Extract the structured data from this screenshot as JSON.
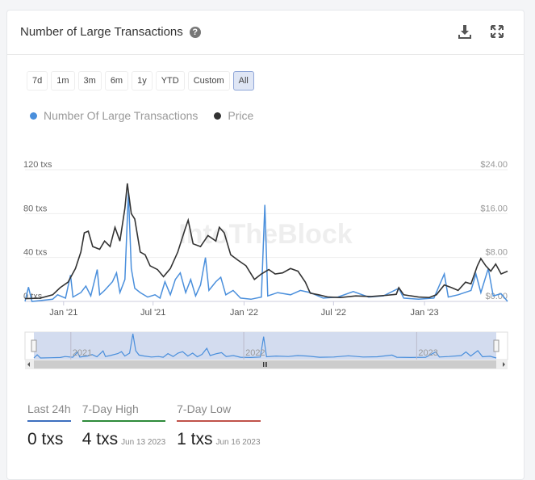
{
  "header": {
    "title": "Number of Large Transactions",
    "help_icon": "question-circle-icon",
    "download_icon": "download-icon",
    "expand_icon": "expand-icon"
  },
  "ranges": [
    "7d",
    "1m",
    "3m",
    "6m",
    "1y",
    "YTD",
    "Custom",
    "All"
  ],
  "selected_range": "All",
  "watermark": "IntoTheBlock",
  "chart_data": {
    "type": "line",
    "title": "",
    "legend": {
      "placement": "top-left",
      "entries": [
        {
          "name": "Number Of Large Transactions",
          "color": "#4a8fdc"
        },
        {
          "name": "Price",
          "color": "#333333"
        }
      ]
    },
    "y_left": {
      "ticks": [
        "0 txs",
        "40 txs",
        "80 txs",
        "120 txs"
      ],
      "range": [
        0,
        120
      ]
    },
    "y_right": {
      "ticks": [
        "$0.00",
        "$8.00",
        "$16.00",
        "$24.00"
      ],
      "range": [
        0,
        24
      ]
    },
    "x_ticks": [
      {
        "label": "Jan '21",
        "date": "2021-01-01"
      },
      {
        "label": "Jul '21",
        "date": "2021-07-01"
      },
      {
        "label": "Jan '22",
        "date": "2022-01-01"
      },
      {
        "label": "Jul '22",
        "date": "2022-07-01"
      },
      {
        "label": "Jan '23",
        "date": "2023-01-01"
      }
    ],
    "x_range": [
      "2020-10-15",
      "2023-06-18"
    ],
    "grid": true,
    "series": [
      {
        "name": "Price",
        "axis": "right",
        "points": [
          [
            "2020-10-15",
            0.5
          ],
          [
            "2020-11-15",
            0.6
          ],
          [
            "2020-12-10",
            1.2
          ],
          [
            "2020-12-25",
            2.5
          ],
          [
            "2021-01-10",
            3.5
          ],
          [
            "2021-01-25",
            6
          ],
          [
            "2021-02-05",
            9
          ],
          [
            "2021-02-12",
            12.5
          ],
          [
            "2021-02-20",
            12.8
          ],
          [
            "2021-03-01",
            10
          ],
          [
            "2021-03-15",
            9.5
          ],
          [
            "2021-03-25",
            11
          ],
          [
            "2021-04-05",
            10
          ],
          [
            "2021-04-15",
            13.5
          ],
          [
            "2021-04-25",
            11
          ],
          [
            "2021-05-05",
            17
          ],
          [
            "2021-05-10",
            21.5
          ],
          [
            "2021-05-18",
            16
          ],
          [
            "2021-05-25",
            15
          ],
          [
            "2021-06-05",
            9
          ],
          [
            "2021-06-15",
            8.5
          ],
          [
            "2021-06-25",
            6.5
          ],
          [
            "2021-07-10",
            5.8
          ],
          [
            "2021-07-22",
            4.5
          ],
          [
            "2021-08-05",
            6
          ],
          [
            "2021-08-20",
            9
          ],
          [
            "2021-09-05",
            13.5
          ],
          [
            "2021-09-10",
            14.8
          ],
          [
            "2021-09-20",
            10.5
          ],
          [
            "2021-10-05",
            10
          ],
          [
            "2021-10-20",
            12
          ],
          [
            "2021-11-05",
            11
          ],
          [
            "2021-11-12",
            13.5
          ],
          [
            "2021-11-22",
            12.5
          ],
          [
            "2021-12-05",
            8.5
          ],
          [
            "2021-12-20",
            7.5
          ],
          [
            "2022-01-05",
            6.5
          ],
          [
            "2022-01-22",
            4
          ],
          [
            "2022-02-05",
            5
          ],
          [
            "2022-02-20",
            5.8
          ],
          [
            "2022-03-05",
            5
          ],
          [
            "2022-03-20",
            5.2
          ],
          [
            "2022-04-05",
            6
          ],
          [
            "2022-04-20",
            5.5
          ],
          [
            "2022-05-05",
            3.5
          ],
          [
            "2022-05-15",
            1.5
          ],
          [
            "2022-06-01",
            1.2
          ],
          [
            "2022-06-20",
            0.8
          ],
          [
            "2022-07-15",
            0.7
          ],
          [
            "2022-08-15",
            1
          ],
          [
            "2022-09-15",
            0.9
          ],
          [
            "2022-10-15",
            1.1
          ],
          [
            "2022-11-05",
            1.3
          ],
          [
            "2022-11-10",
            2.5
          ],
          [
            "2022-11-20",
            1.2
          ],
          [
            "2022-12-20",
            0.8
          ],
          [
            "2023-01-10",
            0.7
          ],
          [
            "2023-01-25",
            1.2
          ],
          [
            "2023-02-10",
            3
          ],
          [
            "2023-02-25",
            2.5
          ],
          [
            "2023-03-10",
            2
          ],
          [
            "2023-03-25",
            3.5
          ],
          [
            "2023-04-05",
            3.2
          ],
          [
            "2023-04-18",
            6.5
          ],
          [
            "2023-04-25",
            7.8
          ],
          [
            "2023-05-05",
            6.5
          ],
          [
            "2023-05-15",
            5.5
          ],
          [
            "2023-05-25",
            6.8
          ],
          [
            "2023-06-05",
            5
          ],
          [
            "2023-06-18",
            5.5
          ]
        ]
      },
      {
        "name": "Number Of Large Transactions",
        "axis": "left",
        "points": [
          [
            "2020-10-15",
            0
          ],
          [
            "2020-10-22",
            13
          ],
          [
            "2020-10-29",
            0
          ],
          [
            "2020-11-20",
            1
          ],
          [
            "2020-12-10",
            2
          ],
          [
            "2020-12-20",
            6
          ],
          [
            "2021-01-05",
            3
          ],
          [
            "2021-01-15",
            24
          ],
          [
            "2021-01-20",
            4
          ],
          [
            "2021-02-05",
            8
          ],
          [
            "2021-02-15",
            14
          ],
          [
            "2021-02-25",
            5
          ],
          [
            "2021-03-10",
            29
          ],
          [
            "2021-03-15",
            6
          ],
          [
            "2021-03-25",
            10
          ],
          [
            "2021-04-10",
            18
          ],
          [
            "2021-04-18",
            26
          ],
          [
            "2021-04-25",
            8
          ],
          [
            "2021-05-05",
            20
          ],
          [
            "2021-05-12",
            100
          ],
          [
            "2021-05-18",
            30
          ],
          [
            "2021-05-25",
            12
          ],
          [
            "2021-06-05",
            8
          ],
          [
            "2021-06-20",
            4
          ],
          [
            "2021-07-05",
            6
          ],
          [
            "2021-07-15",
            3
          ],
          [
            "2021-07-25",
            18
          ],
          [
            "2021-08-05",
            6
          ],
          [
            "2021-08-15",
            20
          ],
          [
            "2021-08-25",
            26
          ],
          [
            "2021-09-05",
            8
          ],
          [
            "2021-09-15",
            20
          ],
          [
            "2021-09-25",
            5
          ],
          [
            "2021-10-05",
            15
          ],
          [
            "2021-10-15",
            40
          ],
          [
            "2021-10-22",
            10
          ],
          [
            "2021-11-05",
            18
          ],
          [
            "2021-11-15",
            22
          ],
          [
            "2021-11-25",
            6
          ],
          [
            "2021-12-10",
            10
          ],
          [
            "2021-12-25",
            3
          ],
          [
            "2022-01-15",
            2
          ],
          [
            "2022-02-05",
            4
          ],
          [
            "2022-02-12",
            88
          ],
          [
            "2022-02-18",
            5
          ],
          [
            "2022-03-10",
            8
          ],
          [
            "2022-04-05",
            6
          ],
          [
            "2022-04-25",
            10
          ],
          [
            "2022-05-15",
            8
          ],
          [
            "2022-06-10",
            3
          ],
          [
            "2022-07-10",
            4
          ],
          [
            "2022-08-10",
            9
          ],
          [
            "2022-09-10",
            4
          ],
          [
            "2022-10-10",
            5
          ],
          [
            "2022-11-10",
            12
          ],
          [
            "2022-11-20",
            3
          ],
          [
            "2022-12-20",
            2
          ],
          [
            "2023-01-20",
            3
          ],
          [
            "2023-02-10",
            25
          ],
          [
            "2023-02-18",
            4
          ],
          [
            "2023-03-10",
            6
          ],
          [
            "2023-04-05",
            10
          ],
          [
            "2023-04-15",
            25
          ],
          [
            "2023-04-25",
            8
          ],
          [
            "2023-05-10",
            30
          ],
          [
            "2023-05-20",
            5
          ],
          [
            "2023-06-05",
            7
          ],
          [
            "2023-06-18",
            0
          ]
        ]
      }
    ]
  },
  "navigator": {
    "year_labels": [
      "2021",
      "2022",
      "2023"
    ]
  },
  "stats": [
    {
      "label": "Last 24h",
      "value": "0 txs",
      "date": "",
      "color": "#3d6fbf"
    },
    {
      "label": "7-Day High",
      "value": "4 txs",
      "date": "Jun 13 2023",
      "color": "#2e8b3a"
    },
    {
      "label": "7-Day Low",
      "value": "1 txs",
      "date": "Jun 16 2023",
      "color": "#c0524a"
    }
  ]
}
